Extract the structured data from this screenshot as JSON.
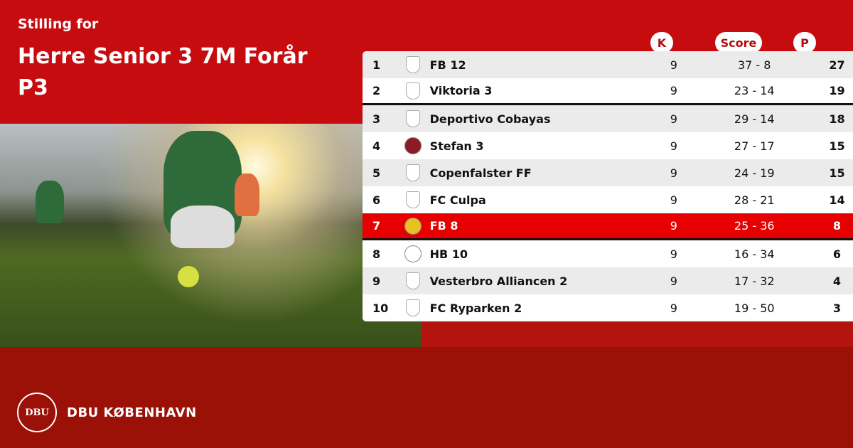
{
  "header": {
    "subtitle": "Stilling for",
    "title": "Herre Senior 3 7M Forår P3"
  },
  "columns": {
    "k": "K",
    "score": "Score",
    "p": "P"
  },
  "rows": [
    {
      "pos": "1",
      "team": "FB 12",
      "k": "9",
      "score": "37 - 8",
      "p": "27",
      "logo": "shield-placeholder"
    },
    {
      "pos": "2",
      "team": "Viktoria 3",
      "k": "9",
      "score": "23 - 14",
      "p": "19",
      "logo": "shield-placeholder"
    },
    {
      "pos": "3",
      "team": "Deportivo Cobayas",
      "k": "9",
      "score": "29 - 14",
      "p": "18",
      "logo": "shield-placeholder"
    },
    {
      "pos": "4",
      "team": "Stefan 3",
      "k": "9",
      "score": "27 - 17",
      "p": "15",
      "logo": "club-crest"
    },
    {
      "pos": "5",
      "team": "Copenfalster FF",
      "k": "9",
      "score": "24 - 19",
      "p": "15",
      "logo": "shield-placeholder"
    },
    {
      "pos": "6",
      "team": "FC Culpa",
      "k": "9",
      "score": "28 - 21",
      "p": "14",
      "logo": "shield-placeholder"
    },
    {
      "pos": "7",
      "team": "FB 8",
      "k": "9",
      "score": "25 - 36",
      "p": "8",
      "logo": "club-crest",
      "highlighted": true
    },
    {
      "pos": "8",
      "team": "HB 10",
      "k": "9",
      "score": "16 - 34",
      "p": "6",
      "logo": "club-crest"
    },
    {
      "pos": "9",
      "team": "Vesterbro Alliancen 2",
      "k": "9",
      "score": "17 - 32",
      "p": "4",
      "logo": "shield-placeholder"
    },
    {
      "pos": "10",
      "team": "FC Ryparken 2",
      "k": "9",
      "score": "19 - 50",
      "p": "3",
      "logo": "shield-placeholder"
    }
  ],
  "brand": {
    "name": "DBU KØBENHAVN",
    "logo_text": "DBU"
  },
  "colors": {
    "primary": "#c70c10",
    "dark": "#9b1007",
    "highlight": "#e60000"
  }
}
